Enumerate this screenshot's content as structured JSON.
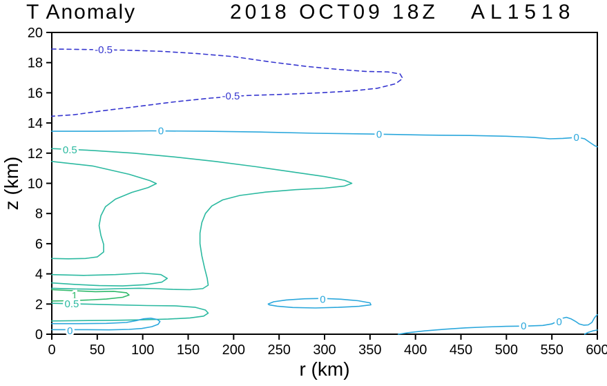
{
  "chart_data": {
    "type": "contour",
    "title": "T Anomaly",
    "datetime_label": "2018 OCT09 18Z",
    "storm_id": "AL1518",
    "xlabel": "r (km)",
    "ylabel": "z (km)",
    "xlim": [
      0,
      600
    ],
    "ylim": [
      0,
      20
    ],
    "xticks": [
      0,
      50,
      100,
      150,
      200,
      250,
      300,
      350,
      400,
      450,
      500,
      550,
      600
    ],
    "yticks": [
      0,
      2,
      4,
      6,
      8,
      10,
      12,
      14,
      16,
      18,
      20
    ],
    "grid": false,
    "legend": "none",
    "colors": {
      "neg": "#3535cf",
      "zero": "#2aa7dc",
      "half": "#2bb9a0",
      "one": "#2fb96a",
      "frame": "#000000"
    },
    "contours": [
      {
        "level": -0.5,
        "color_key": "neg",
        "dashed": true,
        "points": [
          [
            0,
            18.9
          ],
          [
            40,
            18.87
          ],
          [
            80,
            18.83
          ],
          [
            120,
            18.75
          ],
          [
            160,
            18.6
          ],
          [
            200,
            18.4
          ],
          [
            240,
            18.05
          ],
          [
            280,
            17.75
          ],
          [
            315,
            17.55
          ],
          [
            345,
            17.42
          ],
          [
            370,
            17.38
          ],
          [
            383,
            17.25
          ],
          [
            386,
            16.95
          ],
          [
            378,
            16.6
          ],
          [
            358,
            16.3
          ],
          [
            330,
            16.12
          ],
          [
            295,
            16.0
          ],
          [
            255,
            15.9
          ],
          [
            215,
            15.82
          ],
          [
            175,
            15.65
          ],
          [
            135,
            15.4
          ],
          [
            95,
            15.1
          ],
          [
            55,
            14.8
          ],
          [
            25,
            14.55
          ],
          [
            0,
            14.45
          ]
        ]
      },
      {
        "level": 0,
        "color_key": "zero",
        "dashed": false,
        "points": [
          [
            0,
            13.45
          ],
          [
            50,
            13.45
          ],
          [
            110,
            13.48
          ],
          [
            170,
            13.45
          ],
          [
            230,
            13.4
          ],
          [
            290,
            13.32
          ],
          [
            350,
            13.27
          ],
          [
            410,
            13.2
          ],
          [
            460,
            13.17
          ],
          [
            500,
            13.12
          ],
          [
            530,
            13.05
          ],
          [
            548,
            12.95
          ],
          [
            562,
            12.98
          ],
          [
            578,
            13.05
          ],
          [
            586,
            12.95
          ],
          [
            592,
            12.7
          ],
          [
            597,
            12.5
          ],
          [
            600,
            12.42
          ]
        ]
      },
      {
        "level": 0.5,
        "color_key": "half",
        "dashed": false,
        "points": [
          [
            0,
            12.3
          ],
          [
            45,
            12.18
          ],
          [
            90,
            12.0
          ],
          [
            135,
            11.75
          ],
          [
            180,
            11.45
          ],
          [
            225,
            11.1
          ],
          [
            265,
            10.75
          ],
          [
            300,
            10.45
          ],
          [
            322,
            10.2
          ],
          [
            330,
            10.0
          ],
          [
            322,
            9.82
          ],
          [
            300,
            9.68
          ],
          [
            268,
            9.58
          ],
          [
            235,
            9.42
          ],
          [
            207,
            9.2
          ],
          [
            188,
            8.9
          ],
          [
            176,
            8.5
          ],
          [
            169,
            8.0
          ],
          [
            165,
            7.4
          ],
          [
            163,
            6.7
          ],
          [
            163,
            6.0
          ],
          [
            165,
            5.2
          ],
          [
            168,
            4.4
          ],
          [
            171,
            3.7
          ],
          [
            172,
            3.25
          ],
          [
            166,
            3.02
          ],
          [
            152,
            2.95
          ],
          [
            133,
            2.97
          ],
          [
            114,
            3.02
          ],
          [
            96,
            3.05
          ],
          [
            75,
            3.02
          ],
          [
            50,
            2.98
          ],
          [
            25,
            3.0
          ],
          [
            0,
            3.05
          ]
        ]
      },
      {
        "level": 0.5,
        "color_key": "half",
        "dashed": false,
        "points": [
          [
            0,
            2.05
          ],
          [
            35,
            2.0
          ],
          [
            70,
            1.95
          ],
          [
            105,
            1.9
          ],
          [
            135,
            1.88
          ],
          [
            158,
            1.78
          ],
          [
            169,
            1.6
          ],
          [
            172,
            1.4
          ],
          [
            167,
            1.2
          ],
          [
            152,
            1.08
          ],
          [
            128,
            1.0
          ],
          [
            98,
            0.95
          ],
          [
            65,
            0.92
          ],
          [
            32,
            0.9
          ],
          [
            0,
            0.88
          ]
        ]
      },
      {
        "level": 1,
        "color_key": "half",
        "dashed": false,
        "points": [
          [
            0,
            11.45
          ],
          [
            45,
            11.15
          ],
          [
            85,
            10.6
          ],
          [
            108,
            10.18
          ],
          [
            115,
            9.98
          ],
          [
            106,
            9.72
          ],
          [
            88,
            9.4
          ],
          [
            70,
            8.95
          ],
          [
            59,
            8.45
          ],
          [
            54,
            7.85
          ],
          [
            52,
            7.2
          ],
          [
            54,
            6.55
          ],
          [
            57,
            5.95
          ],
          [
            57,
            5.45
          ],
          [
            50,
            5.12
          ],
          [
            37,
            5.02
          ],
          [
            18,
            5.0
          ],
          [
            0,
            5.02
          ]
        ]
      },
      {
        "level": 1,
        "color_key": "half",
        "dashed": false,
        "points": [
          [
            0,
            3.95
          ],
          [
            35,
            3.9
          ],
          [
            70,
            3.95
          ],
          [
            100,
            4.05
          ],
          [
            120,
            3.95
          ],
          [
            127,
            3.7
          ],
          [
            121,
            3.45
          ],
          [
            103,
            3.28
          ],
          [
            78,
            3.2
          ],
          [
            52,
            3.22
          ],
          [
            26,
            3.3
          ],
          [
            0,
            3.4
          ]
        ]
      },
      {
        "level": 1,
        "color_key": "one",
        "dashed": false,
        "points": [
          [
            0,
            2.95
          ],
          [
            25,
            2.88
          ],
          [
            48,
            2.82
          ],
          [
            68,
            2.84
          ],
          [
            82,
            2.75
          ],
          [
            85,
            2.6
          ],
          [
            78,
            2.45
          ],
          [
            60,
            2.33
          ],
          [
            38,
            2.26
          ],
          [
            18,
            2.22
          ],
          [
            0,
            2.2
          ]
        ]
      },
      {
        "level": 0,
        "color_key": "zero",
        "dashed": false,
        "points": [
          [
            0,
            0.7
          ],
          [
            30,
            0.7
          ],
          [
            60,
            0.72
          ],
          [
            82,
            0.78
          ],
          [
            93,
            0.9
          ],
          [
            101,
            1.02
          ],
          [
            109,
            1.06
          ],
          [
            116,
            0.98
          ],
          [
            119,
            0.84
          ],
          [
            117,
            0.66
          ],
          [
            110,
            0.5
          ],
          [
            99,
            0.38
          ],
          [
            85,
            0.32
          ],
          [
            63,
            0.29
          ],
          [
            38,
            0.3
          ],
          [
            0,
            0.3
          ]
        ]
      },
      {
        "level": 0,
        "color_key": "zero",
        "dashed": false,
        "points": [
          [
            238,
            2.0
          ],
          [
            244,
            2.15
          ],
          [
            258,
            2.27
          ],
          [
            278,
            2.35
          ],
          [
            298,
            2.37
          ],
          [
            318,
            2.32
          ],
          [
            337,
            2.22
          ],
          [
            350,
            2.08
          ],
          [
            351,
            1.95
          ],
          [
            338,
            1.85
          ],
          [
            315,
            1.78
          ],
          [
            290,
            1.74
          ],
          [
            265,
            1.77
          ],
          [
            248,
            1.86
          ],
          [
            239,
            1.95
          ],
          [
            238,
            2.0
          ]
        ]
      },
      {
        "level": 0,
        "color_key": "zero",
        "dashed": false,
        "points": [
          [
            381,
            0
          ],
          [
            392,
            0.1
          ],
          [
            410,
            0.22
          ],
          [
            432,
            0.33
          ],
          [
            455,
            0.42
          ],
          [
            478,
            0.48
          ],
          [
            500,
            0.52
          ],
          [
            522,
            0.54
          ],
          [
            540,
            0.58
          ],
          [
            550,
            0.68
          ],
          [
            556,
            0.85
          ],
          [
            561,
            1.05
          ],
          [
            566,
            1.12
          ],
          [
            571,
            1.02
          ],
          [
            576,
            0.85
          ],
          [
            580,
            0.68
          ],
          [
            585,
            0.6
          ],
          [
            590,
            0.62
          ],
          [
            594,
            0.78
          ],
          [
            597,
            1.1
          ],
          [
            600,
            1.3
          ]
        ]
      },
      {
        "level": 0,
        "color_key": "zero",
        "dashed": false,
        "points": [
          [
            586,
            0
          ],
          [
            590,
            0.12
          ],
          [
            595,
            0.22
          ],
          [
            600,
            0.28
          ]
        ]
      }
    ],
    "labels": [
      {
        "text": "-0.5",
        "r": 57,
        "z": 18.85,
        "c": "neg"
      },
      {
        "text": "-0.5",
        "r": 197,
        "z": 15.78,
        "c": "neg"
      },
      {
        "text": "0",
        "r": 120,
        "z": 13.48,
        "c": "zero"
      },
      {
        "text": "0",
        "r": 360,
        "z": 13.26,
        "c": "zero"
      },
      {
        "text": "0",
        "r": 577,
        "z": 13.05,
        "c": "zero"
      },
      {
        "text": "0.5",
        "r": 20,
        "z": 12.22,
        "c": "half"
      },
      {
        "text": "1",
        "r": 25,
        "z": 2.56,
        "c": "one"
      },
      {
        "text": "0.5",
        "r": 22,
        "z": 2.02,
        "c": "half"
      },
      {
        "text": "0",
        "r": 20,
        "z": 0.22,
        "c": "zero"
      },
      {
        "text": "0",
        "r": 298,
        "z": 2.3,
        "c": "zero"
      },
      {
        "text": "0",
        "r": 519,
        "z": 0.56,
        "c": "zero"
      },
      {
        "text": "0",
        "r": 558,
        "z": 0.82,
        "c": "zero"
      }
    ]
  }
}
